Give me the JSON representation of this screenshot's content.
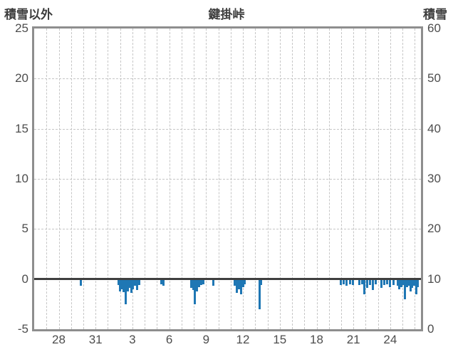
{
  "header": {
    "left_label": "積雪以外",
    "title": "鍵掛峠",
    "right_label": "積雪"
  },
  "chart_data": {
    "type": "bar",
    "title": "鍵掛峠",
    "series_name": "積雪以外",
    "bar_color": "#1f77b4",
    "frame_color": "#8e8e8e",
    "grid_color": "#c6c6c6",
    "zero_line_color": "#3f3f3f",
    "left_axis": {
      "title": "積雪以外",
      "min": -5,
      "max": 25,
      "ticks": [
        "25",
        "20",
        "15",
        "10",
        "5",
        "0",
        "-5"
      ],
      "grid_values": [
        20,
        15,
        10,
        5
      ]
    },
    "right_axis": {
      "title": "積雪",
      "min": 0,
      "max": 60,
      "ticks": [
        "60",
        "50",
        "40",
        "30",
        "20",
        "10",
        "0"
      ]
    },
    "x_axis": {
      "tick_labels": [
        "28",
        "31",
        "3",
        "6",
        "9",
        "12",
        "15",
        "18",
        "21",
        "24"
      ],
      "tick_day_offsets": [
        2,
        5,
        8,
        11,
        14,
        17,
        20,
        23,
        26,
        29
      ],
      "domain_days": 31.5,
      "gridline_every_days": 1
    },
    "zero_line_value": 0,
    "bars": [
      {
        "d": 3.8,
        "v": -0.7
      },
      {
        "d": 6.85,
        "v": -0.6
      },
      {
        "d": 7.0,
        "v": -1.2
      },
      {
        "d": 7.15,
        "v": -1.0
      },
      {
        "d": 7.3,
        "v": -1.3
      },
      {
        "d": 7.45,
        "v": -2.5
      },
      {
        "d": 7.6,
        "v": -1.2
      },
      {
        "d": 7.75,
        "v": -0.9
      },
      {
        "d": 7.9,
        "v": -1.4
      },
      {
        "d": 8.05,
        "v": -1.0
      },
      {
        "d": 8.2,
        "v": -0.7
      },
      {
        "d": 8.4,
        "v": -1.1
      },
      {
        "d": 8.55,
        "v": -0.6
      },
      {
        "d": 10.35,
        "v": -0.5
      },
      {
        "d": 10.55,
        "v": -0.7
      },
      {
        "d": 12.8,
        "v": -0.9
      },
      {
        "d": 12.95,
        "v": -1.1
      },
      {
        "d": 13.1,
        "v": -2.5
      },
      {
        "d": 13.25,
        "v": -1.2
      },
      {
        "d": 13.4,
        "v": -0.8
      },
      {
        "d": 13.6,
        "v": -0.6
      },
      {
        "d": 13.8,
        "v": -0.5
      },
      {
        "d": 14.6,
        "v": -0.7
      },
      {
        "d": 16.3,
        "v": -0.7
      },
      {
        "d": 16.5,
        "v": -1.4
      },
      {
        "d": 16.65,
        "v": -1.0
      },
      {
        "d": 16.85,
        "v": -1.5
      },
      {
        "d": 17.0,
        "v": -0.8
      },
      {
        "d": 17.15,
        "v": -0.5
      },
      {
        "d": 18.35,
        "v": -3.0
      },
      {
        "d": 18.5,
        "v": -0.6
      },
      {
        "d": 24.95,
        "v": -0.6
      },
      {
        "d": 25.2,
        "v": -0.5
      },
      {
        "d": 25.45,
        "v": -0.7
      },
      {
        "d": 25.7,
        "v": -0.5
      },
      {
        "d": 25.95,
        "v": -0.6
      },
      {
        "d": 26.5,
        "v": -0.6
      },
      {
        "d": 26.7,
        "v": -0.5
      },
      {
        "d": 26.9,
        "v": -1.5
      },
      {
        "d": 27.1,
        "v": -0.9
      },
      {
        "d": 27.35,
        "v": -0.6
      },
      {
        "d": 27.6,
        "v": -1.1
      },
      {
        "d": 27.8,
        "v": -0.5
      },
      {
        "d": 28.25,
        "v": -0.9
      },
      {
        "d": 28.5,
        "v": -0.6
      },
      {
        "d": 28.75,
        "v": -0.5
      },
      {
        "d": 29.0,
        "v": -0.8
      },
      {
        "d": 29.25,
        "v": -0.6
      },
      {
        "d": 29.6,
        "v": -0.7
      },
      {
        "d": 29.75,
        "v": -1.0
      },
      {
        "d": 29.9,
        "v": -0.8
      },
      {
        "d": 30.05,
        "v": -0.6
      },
      {
        "d": 30.2,
        "v": -2.0
      },
      {
        "d": 30.35,
        "v": -0.8
      },
      {
        "d": 30.5,
        "v": -0.7
      },
      {
        "d": 30.65,
        "v": -1.2
      },
      {
        "d": 30.8,
        "v": -0.9
      },
      {
        "d": 30.95,
        "v": -0.7
      },
      {
        "d": 31.1,
        "v": -1.5
      },
      {
        "d": 31.25,
        "v": -0.8
      }
    ]
  }
}
